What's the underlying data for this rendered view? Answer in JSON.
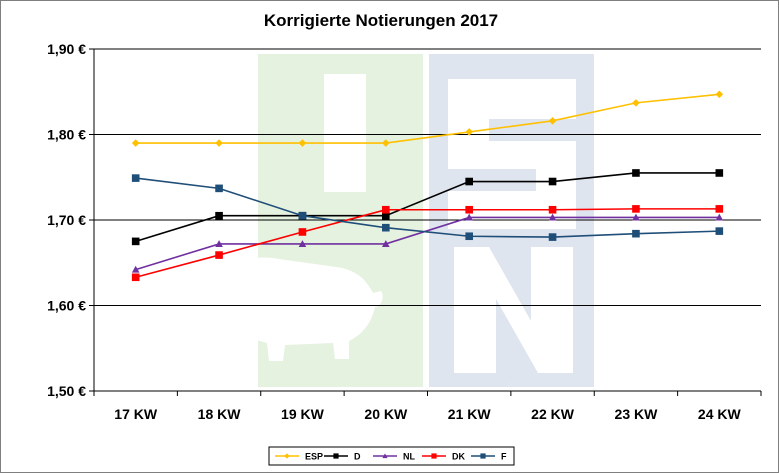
{
  "chart_data": {
    "type": "line",
    "title": "Korrigierte Notierungen 2017",
    "xlabel": "",
    "ylabel": "",
    "categories": [
      "17 KW",
      "18 KW",
      "19 KW",
      "20 KW",
      "21 KW",
      "22 KW",
      "23 KW",
      "24 KW"
    ],
    "ylim": [
      1.5,
      1.9
    ],
    "y_ticks": [
      1.5,
      1.6,
      1.7,
      1.8,
      1.9
    ],
    "y_tick_labels": [
      "1,50 €",
      "1,60 €",
      "1,70 €",
      "1,80 €",
      "1,90 €"
    ],
    "grid": true,
    "legend_position": "bottom",
    "watermark": "ISN",
    "series": [
      {
        "name": "ESP",
        "color": "#ffc000",
        "marker": "diamond",
        "values": [
          1.79,
          1.79,
          1.79,
          1.79,
          1.803,
          1.816,
          1.837,
          1.847
        ]
      },
      {
        "name": "D",
        "color": "#000000",
        "marker": "square",
        "values": [
          1.675,
          1.705,
          1.705,
          1.705,
          1.745,
          1.745,
          1.755,
          1.755
        ]
      },
      {
        "name": "NL",
        "color": "#7030a0",
        "marker": "triangle",
        "values": [
          1.642,
          1.672,
          1.672,
          1.672,
          1.703,
          1.703,
          1.703,
          1.703
        ]
      },
      {
        "name": "DK",
        "color": "#ff0000",
        "marker": "square",
        "values": [
          1.633,
          1.659,
          1.686,
          1.712,
          1.712,
          1.712,
          1.713,
          1.713
        ]
      },
      {
        "name": "F",
        "color": "#1f4e79",
        "marker": "square",
        "values": [
          1.749,
          1.737,
          1.705,
          1.691,
          1.681,
          1.68,
          1.684,
          1.687
        ]
      }
    ]
  }
}
